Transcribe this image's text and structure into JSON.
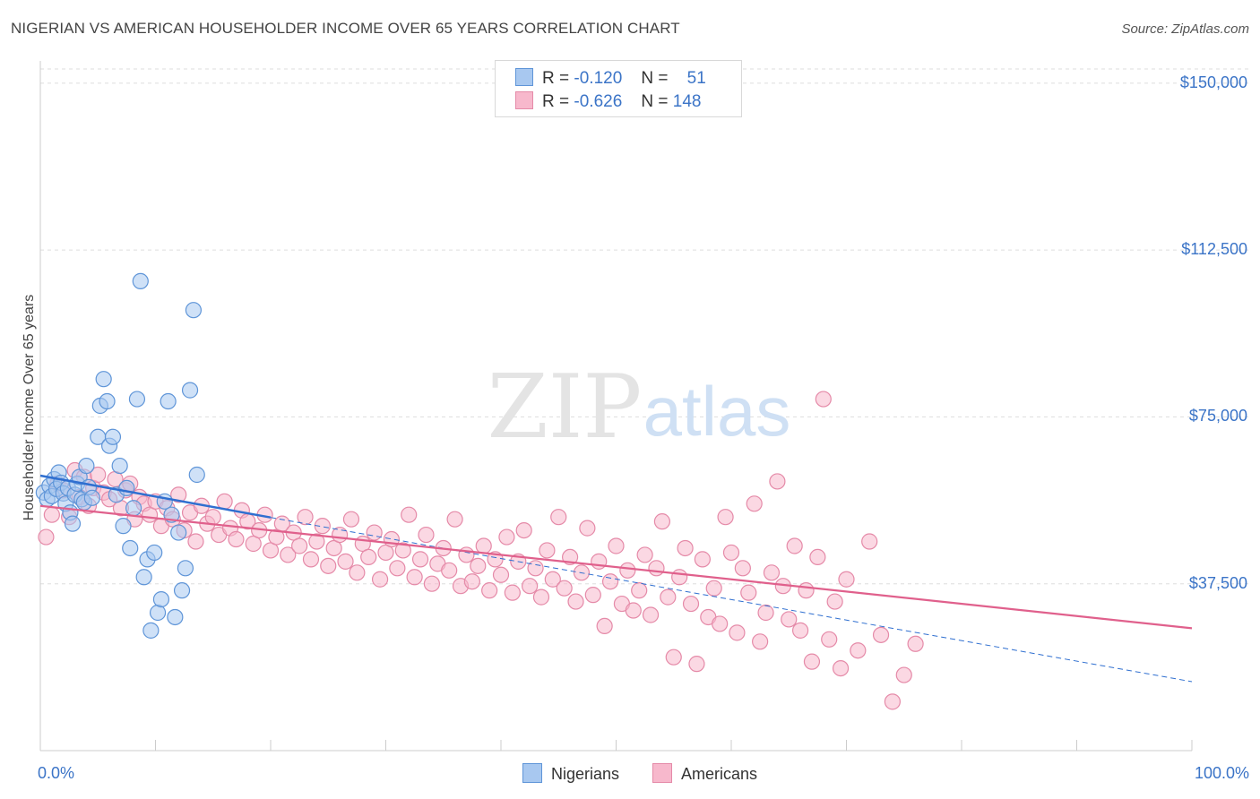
{
  "title": "NIGERIAN VS AMERICAN HOUSEHOLDER INCOME OVER 65 YEARS CORRELATION CHART",
  "source": "Source: ZipAtlas.com",
  "watermark": {
    "zip": "ZIP",
    "atlas": "atlas"
  },
  "stats": {
    "r_label": "R =",
    "n_label": "N =",
    "rows": [
      {
        "r": "-0.120",
        "n": "51"
      },
      {
        "r": "-0.626",
        "n": "148"
      }
    ]
  },
  "legend": {
    "items": [
      "Nigerians",
      "Americans"
    ]
  },
  "colors": {
    "nigerians_fill": "#a8c8f0",
    "nigerians_stroke": "#5f95d8",
    "nigerians_line": "#2f6fd0",
    "americans_fill": "#f7b8cc",
    "americans_stroke": "#e58aa8",
    "americans_line": "#e0608c",
    "tick_label": "#3b74c7"
  },
  "chart_data": {
    "type": "scatter",
    "title": "NIGERIAN VS AMERICAN HOUSEHOLDER INCOME OVER 65 YEARS CORRELATION CHART",
    "xlabel": "",
    "ylabel": "Householder Income Over 65 years",
    "xlim": [
      0,
      100
    ],
    "ylim": [
      0,
      155000
    ],
    "x_ticks": [
      "0.0%",
      "100.0%"
    ],
    "y_ticks": [
      {
        "value": 37500,
        "label": "$37,500"
      },
      {
        "value": 75000,
        "label": "$75,000"
      },
      {
        "value": 112500,
        "label": "$112,500"
      },
      {
        "value": 150000,
        "label": "$150,000"
      }
    ],
    "grid": "horizontal dashed",
    "legend_position": "bottom",
    "series": [
      {
        "name": "Nigerians",
        "trend": {
          "x": [
            0,
            20
          ],
          "y": [
            61800,
            52400
          ],
          "dashed_extension_to_x": 100,
          "dashed_extension_y": 15500
        },
        "points": [
          [
            0.3,
            58000
          ],
          [
            0.6,
            56500
          ],
          [
            0.8,
            59500
          ],
          [
            1.0,
            57200
          ],
          [
            1.2,
            61000
          ],
          [
            1.4,
            58800
          ],
          [
            1.6,
            62500
          ],
          [
            1.8,
            60200
          ],
          [
            2.0,
            57800
          ],
          [
            2.2,
            55500
          ],
          [
            2.4,
            59000
          ],
          [
            2.6,
            53500
          ],
          [
            2.8,
            51000
          ],
          [
            3.0,
            57500
          ],
          [
            3.2,
            60000
          ],
          [
            3.4,
            61500
          ],
          [
            3.6,
            56500
          ],
          [
            3.8,
            55800
          ],
          [
            4.0,
            64000
          ],
          [
            4.2,
            59200
          ],
          [
            4.5,
            56800
          ],
          [
            5.0,
            70500
          ],
          [
            5.2,
            77500
          ],
          [
            5.5,
            83500
          ],
          [
            5.8,
            78500
          ],
          [
            6.0,
            68500
          ],
          [
            6.3,
            70500
          ],
          [
            6.6,
            57500
          ],
          [
            6.9,
            64000
          ],
          [
            7.2,
            50500
          ],
          [
            7.5,
            59000
          ],
          [
            7.8,
            45500
          ],
          [
            8.1,
            54500
          ],
          [
            8.4,
            79000
          ],
          [
            8.7,
            105500
          ],
          [
            9.0,
            39000
          ],
          [
            9.3,
            43000
          ],
          [
            9.6,
            27000
          ],
          [
            9.9,
            44500
          ],
          [
            10.2,
            31000
          ],
          [
            10.5,
            34000
          ],
          [
            10.8,
            56000
          ],
          [
            11.1,
            78500
          ],
          [
            11.4,
            53000
          ],
          [
            11.7,
            30000
          ],
          [
            12.0,
            49000
          ],
          [
            12.3,
            36000
          ],
          [
            12.6,
            41000
          ],
          [
            13.0,
            81000
          ],
          [
            13.3,
            99000
          ],
          [
            13.6,
            62000
          ]
        ]
      },
      {
        "name": "Americans",
        "trend": {
          "x": [
            0,
            100
          ],
          "y": [
            55000,
            27500
          ]
        },
        "points": [
          [
            0.5,
            48000
          ],
          [
            1.0,
            53000
          ],
          [
            1.5,
            60000
          ],
          [
            2.0,
            58500
          ],
          [
            2.5,
            52500
          ],
          [
            3.0,
            63000
          ],
          [
            3.4,
            57000
          ],
          [
            3.8,
            61500
          ],
          [
            4.2,
            55000
          ],
          [
            4.6,
            59000
          ],
          [
            5.0,
            62000
          ],
          [
            5.5,
            58000
          ],
          [
            6.0,
            56500
          ],
          [
            6.5,
            61000
          ],
          [
            7.0,
            54500
          ],
          [
            7.4,
            58500
          ],
          [
            7.8,
            60000
          ],
          [
            8.2,
            52000
          ],
          [
            8.6,
            57000
          ],
          [
            9.0,
            55500
          ],
          [
            9.5,
            53000
          ],
          [
            10.0,
            56000
          ],
          [
            10.5,
            50500
          ],
          [
            11.0,
            54500
          ],
          [
            11.5,
            52000
          ],
          [
            12.0,
            57500
          ],
          [
            12.5,
            49500
          ],
          [
            13.0,
            53500
          ],
          [
            13.5,
            47000
          ],
          [
            14.0,
            55000
          ],
          [
            14.5,
            51000
          ],
          [
            15.0,
            52500
          ],
          [
            15.5,
            48500
          ],
          [
            16.0,
            56000
          ],
          [
            16.5,
            50000
          ],
          [
            17.0,
            47500
          ],
          [
            17.5,
            54000
          ],
          [
            18.0,
            51500
          ],
          [
            18.5,
            46500
          ],
          [
            19.0,
            49500
          ],
          [
            19.5,
            53000
          ],
          [
            20.0,
            45000
          ],
          [
            20.5,
            48000
          ],
          [
            21.0,
            51000
          ],
          [
            21.5,
            44000
          ],
          [
            22.0,
            49000
          ],
          [
            22.5,
            46000
          ],
          [
            23.0,
            52500
          ],
          [
            23.5,
            43000
          ],
          [
            24.0,
            47000
          ],
          [
            24.5,
            50500
          ],
          [
            25.0,
            41500
          ],
          [
            25.5,
            45500
          ],
          [
            26.0,
            48500
          ],
          [
            26.5,
            42500
          ],
          [
            27.0,
            52000
          ],
          [
            27.5,
            40000
          ],
          [
            28.0,
            46500
          ],
          [
            28.5,
            43500
          ],
          [
            29.0,
            49000
          ],
          [
            29.5,
            38500
          ],
          [
            30.0,
            44500
          ],
          [
            30.5,
            47500
          ],
          [
            31.0,
            41000
          ],
          [
            31.5,
            45000
          ],
          [
            32.0,
            53000
          ],
          [
            32.5,
            39000
          ],
          [
            33.0,
            43000
          ],
          [
            33.5,
            48500
          ],
          [
            34.0,
            37500
          ],
          [
            34.5,
            42000
          ],
          [
            35.0,
            45500
          ],
          [
            35.5,
            40500
          ],
          [
            36.0,
            52000
          ],
          [
            36.5,
            37000
          ],
          [
            37.0,
            44000
          ],
          [
            37.5,
            38000
          ],
          [
            38.0,
            41500
          ],
          [
            38.5,
            46000
          ],
          [
            39.0,
            36000
          ],
          [
            39.5,
            43000
          ],
          [
            40.0,
            39500
          ],
          [
            40.5,
            48000
          ],
          [
            41.0,
            35500
          ],
          [
            41.5,
            42500
          ],
          [
            42.0,
            49500
          ],
          [
            42.5,
            37000
          ],
          [
            43.0,
            41000
          ],
          [
            43.5,
            34500
          ],
          [
            44.0,
            45000
          ],
          [
            44.5,
            38500
          ],
          [
            45.0,
            52500
          ],
          [
            45.5,
            36500
          ],
          [
            46.0,
            43500
          ],
          [
            46.5,
            33500
          ],
          [
            47.0,
            40000
          ],
          [
            47.5,
            50000
          ],
          [
            48.0,
            35000
          ],
          [
            48.5,
            42500
          ],
          [
            49.0,
            28000
          ],
          [
            49.5,
            38000
          ],
          [
            50.0,
            46000
          ],
          [
            50.5,
            33000
          ],
          [
            51.0,
            40500
          ],
          [
            51.5,
            31500
          ],
          [
            52.0,
            36000
          ],
          [
            52.5,
            44000
          ],
          [
            53.0,
            30500
          ],
          [
            53.5,
            41000
          ],
          [
            54.0,
            51500
          ],
          [
            54.5,
            34500
          ],
          [
            55.0,
            21000
          ],
          [
            55.5,
            39000
          ],
          [
            56.0,
            45500
          ],
          [
            56.5,
            33000
          ],
          [
            57.0,
            19500
          ],
          [
            57.5,
            43000
          ],
          [
            58.0,
            30000
          ],
          [
            58.5,
            36500
          ],
          [
            59.0,
            28500
          ],
          [
            59.5,
            52500
          ],
          [
            60.0,
            44500
          ],
          [
            60.5,
            26500
          ],
          [
            61.0,
            41000
          ],
          [
            61.5,
            35500
          ],
          [
            62.0,
            55500
          ],
          [
            62.5,
            24500
          ],
          [
            63.0,
            31000
          ],
          [
            63.5,
            40000
          ],
          [
            64.0,
            60500
          ],
          [
            64.5,
            37000
          ],
          [
            65.0,
            29500
          ],
          [
            65.5,
            46000
          ],
          [
            66.0,
            27000
          ],
          [
            66.5,
            36000
          ],
          [
            67.0,
            20000
          ],
          [
            67.5,
            43500
          ],
          [
            68.0,
            79000
          ],
          [
            68.5,
            25000
          ],
          [
            69.0,
            33500
          ],
          [
            69.5,
            18500
          ],
          [
            70.0,
            38500
          ],
          [
            71.0,
            22500
          ],
          [
            72.0,
            47000
          ],
          [
            73.0,
            26000
          ],
          [
            74.0,
            11000
          ],
          [
            75.0,
            17000
          ],
          [
            76.0,
            24000
          ]
        ]
      }
    ]
  }
}
